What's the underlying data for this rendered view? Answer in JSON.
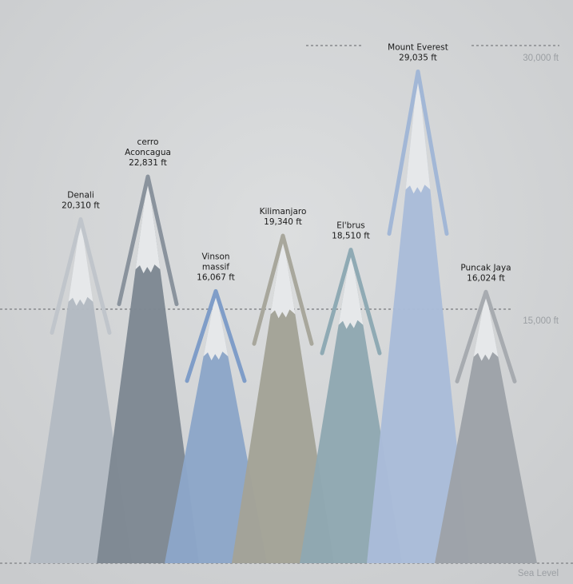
{
  "chart_data": {
    "type": "area",
    "title": "",
    "units": "ft",
    "ylim": [
      0,
      30000
    ],
    "y_ticks": [
      {
        "value": 0,
        "label": "Sea Level"
      },
      {
        "value": 15000,
        "label": "15,000 ft"
      },
      {
        "value": 30000,
        "label": "30,000 ft"
      }
    ],
    "grid": "dashed lines at 15,000 ft and sea level; partial dashed line at 30,000 ft",
    "peaks": [
      {
        "name_lines": [
          "Denali"
        ],
        "value": 20310,
        "label": "20,310 ft",
        "color": "#b3bac2"
      },
      {
        "name_lines": [
          "cerro",
          "Aconcagua"
        ],
        "value": 22831,
        "label": "22,831 ft",
        "color": "#7e8893"
      },
      {
        "name_lines": [
          "Vinson",
          "massif"
        ],
        "value": 16067,
        "label": "16,067 ft",
        "color": "#8ca6c8"
      },
      {
        "name_lines": [
          "Kilimanjaro"
        ],
        "value": 19340,
        "label": "19,340 ft",
        "color": "#a3a397"
      },
      {
        "name_lines": [
          "El'brus"
        ],
        "value": 18510,
        "label": "18,510 ft",
        "color": "#90a8b2"
      },
      {
        "name_lines": [
          "Mount Everest"
        ],
        "value": 29035,
        "label": "29,035 ft",
        "color": "#a9bcd9"
      },
      {
        "name_lines": [
          "Puncak Jaya"
        ],
        "value": 16024,
        "label": "16,024 ft",
        "color": "#9da2a8"
      }
    ]
  }
}
